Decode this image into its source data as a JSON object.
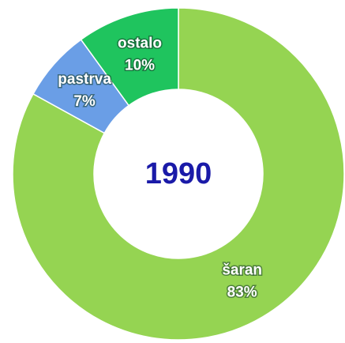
{
  "chart_data": {
    "type": "pie",
    "title": "1990",
    "categories": [
      "šaran",
      "pastrva",
      "ostalo"
    ],
    "values": [
      83,
      7,
      10
    ],
    "value_labels": [
      "83%",
      "7%",
      "10%"
    ],
    "colors": [
      "#95d452",
      "#6a9ee6",
      "#1fc45e"
    ]
  }
}
